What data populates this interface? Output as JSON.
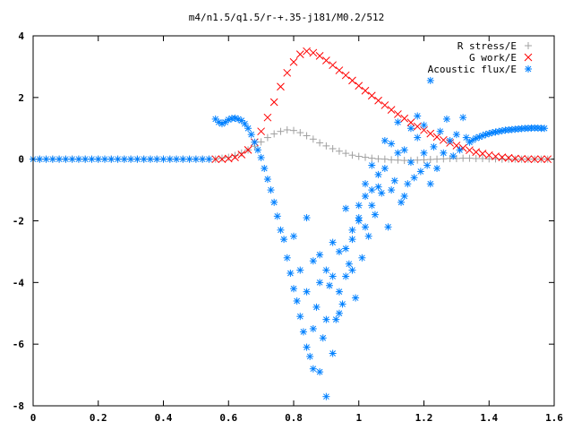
{
  "chart_data": {
    "type": "scatter",
    "title": "m4/n1.5/q1.5/r-+.35-j181/M0.2/512",
    "xlabel": "",
    "ylabel": "",
    "xlim": [
      0,
      1.6
    ],
    "ylim": [
      -8,
      4
    ],
    "x_ticks": [
      "0",
      "0.2",
      "0.4",
      "0.6",
      "0.8",
      "1",
      "1.2",
      "1.4",
      "1.6"
    ],
    "y_ticks": [
      "4",
      "2",
      "0",
      "-2",
      "-4",
      "-6",
      "-8"
    ],
    "grid": false,
    "legend_position": "top-right",
    "series": [
      {
        "name": "R stress/E",
        "marker": "+",
        "color": "#a0a0a0",
        "points": [
          [
            0.0,
            0.0
          ],
          [
            0.02,
            0.0
          ],
          [
            0.04,
            0.0
          ],
          [
            0.06,
            0.0
          ],
          [
            0.08,
            0.0
          ],
          [
            0.1,
            0.0
          ],
          [
            0.12,
            0.0
          ],
          [
            0.14,
            0.0
          ],
          [
            0.16,
            0.0
          ],
          [
            0.18,
            0.0
          ],
          [
            0.2,
            0.0
          ],
          [
            0.22,
            0.0
          ],
          [
            0.24,
            0.0
          ],
          [
            0.26,
            0.0
          ],
          [
            0.28,
            0.0
          ],
          [
            0.3,
            0.0
          ],
          [
            0.32,
            0.0
          ],
          [
            0.34,
            0.0
          ],
          [
            0.36,
            0.0
          ],
          [
            0.38,
            0.0
          ],
          [
            0.4,
            0.0
          ],
          [
            0.42,
            0.0
          ],
          [
            0.44,
            0.0
          ],
          [
            0.46,
            0.0
          ],
          [
            0.48,
            0.0
          ],
          [
            0.5,
            0.0
          ],
          [
            0.52,
            0.0
          ],
          [
            0.54,
            0.0
          ],
          [
            0.56,
            0.0
          ],
          [
            0.58,
            0.03
          ],
          [
            0.6,
            0.06
          ],
          [
            0.62,
            0.12
          ],
          [
            0.64,
            0.2
          ],
          [
            0.66,
            0.3
          ],
          [
            0.68,
            0.42
          ],
          [
            0.7,
            0.56
          ],
          [
            0.72,
            0.7
          ],
          [
            0.74,
            0.82
          ],
          [
            0.76,
            0.9
          ],
          [
            0.78,
            0.95
          ],
          [
            0.8,
            0.93
          ],
          [
            0.82,
            0.86
          ],
          [
            0.84,
            0.76
          ],
          [
            0.86,
            0.65
          ],
          [
            0.88,
            0.53
          ],
          [
            0.9,
            0.43
          ],
          [
            0.92,
            0.34
          ],
          [
            0.94,
            0.26
          ],
          [
            0.96,
            0.19
          ],
          [
            0.98,
            0.13
          ],
          [
            1.0,
            0.09
          ],
          [
            1.02,
            0.06
          ],
          [
            1.04,
            0.03
          ],
          [
            1.06,
            0.01
          ],
          [
            1.08,
            0.0
          ],
          [
            1.1,
            -0.02
          ],
          [
            1.12,
            -0.03
          ],
          [
            1.14,
            -0.04
          ],
          [
            1.16,
            -0.04
          ],
          [
            1.18,
            -0.03
          ],
          [
            1.2,
            -0.02
          ],
          [
            1.22,
            -0.01
          ],
          [
            1.24,
            0.0
          ],
          [
            1.26,
            0.01
          ],
          [
            1.28,
            0.02
          ],
          [
            1.3,
            0.02
          ],
          [
            1.32,
            0.03
          ],
          [
            1.34,
            0.03
          ],
          [
            1.36,
            0.02
          ],
          [
            1.38,
            0.02
          ],
          [
            1.4,
            0.01
          ],
          [
            1.42,
            0.01
          ],
          [
            1.44,
            0.0
          ],
          [
            1.46,
            0.0
          ],
          [
            1.48,
            0.0
          ],
          [
            1.5,
            0.0
          ],
          [
            1.52,
            0.0
          ],
          [
            1.54,
            0.0
          ],
          [
            1.56,
            0.0
          ],
          [
            1.58,
            0.0
          ]
        ]
      },
      {
        "name": "G work/E",
        "marker": "x",
        "color": "#ff0000",
        "points": [
          [
            0.56,
            0.0
          ],
          [
            0.58,
            0.0
          ],
          [
            0.6,
            0.02
          ],
          [
            0.62,
            0.06
          ],
          [
            0.64,
            0.15
          ],
          [
            0.66,
            0.3
          ],
          [
            0.68,
            0.55
          ],
          [
            0.7,
            0.9
          ],
          [
            0.72,
            1.35
          ],
          [
            0.74,
            1.85
          ],
          [
            0.76,
            2.35
          ],
          [
            0.78,
            2.8
          ],
          [
            0.8,
            3.15
          ],
          [
            0.82,
            3.4
          ],
          [
            0.84,
            3.5
          ],
          [
            0.86,
            3.45
          ],
          [
            0.88,
            3.35
          ],
          [
            0.9,
            3.2
          ],
          [
            0.92,
            3.05
          ],
          [
            0.94,
            2.88
          ],
          [
            0.96,
            2.72
          ],
          [
            0.98,
            2.55
          ],
          [
            1.0,
            2.38
          ],
          [
            1.02,
            2.22
          ],
          [
            1.04,
            2.06
          ],
          [
            1.06,
            1.9
          ],
          [
            1.08,
            1.75
          ],
          [
            1.1,
            1.6
          ],
          [
            1.12,
            1.46
          ],
          [
            1.14,
            1.32
          ],
          [
            1.16,
            1.19
          ],
          [
            1.18,
            1.06
          ],
          [
            1.2,
            0.94
          ],
          [
            1.22,
            0.83
          ],
          [
            1.24,
            0.72
          ],
          [
            1.26,
            0.62
          ],
          [
            1.28,
            0.53
          ],
          [
            1.3,
            0.44
          ],
          [
            1.32,
            0.36
          ],
          [
            1.34,
            0.29
          ],
          [
            1.36,
            0.23
          ],
          [
            1.38,
            0.18
          ],
          [
            1.4,
            0.13
          ],
          [
            1.42,
            0.09
          ],
          [
            1.44,
            0.06
          ],
          [
            1.46,
            0.04
          ],
          [
            1.48,
            0.02
          ],
          [
            1.5,
            0.01
          ],
          [
            1.52,
            0.0
          ],
          [
            1.54,
            0.0
          ],
          [
            1.56,
            0.0
          ],
          [
            1.58,
            0.0
          ]
        ]
      },
      {
        "name": "Acoustic flux/E",
        "marker": "*",
        "color": "#0080ff",
        "points": [
          [
            0.0,
            0.0
          ],
          [
            0.02,
            0.0
          ],
          [
            0.04,
            0.0
          ],
          [
            0.06,
            0.0
          ],
          [
            0.08,
            0.0
          ],
          [
            0.1,
            0.0
          ],
          [
            0.12,
            0.0
          ],
          [
            0.14,
            0.0
          ],
          [
            0.16,
            0.0
          ],
          [
            0.18,
            0.0
          ],
          [
            0.2,
            0.0
          ],
          [
            0.22,
            0.0
          ],
          [
            0.24,
            0.0
          ],
          [
            0.26,
            0.0
          ],
          [
            0.28,
            0.0
          ],
          [
            0.3,
            0.0
          ],
          [
            0.32,
            0.0
          ],
          [
            0.34,
            0.0
          ],
          [
            0.36,
            0.0
          ],
          [
            0.38,
            0.0
          ],
          [
            0.4,
            0.0
          ],
          [
            0.42,
            0.0
          ],
          [
            0.44,
            0.0
          ],
          [
            0.46,
            0.0
          ],
          [
            0.48,
            0.0
          ],
          [
            0.5,
            0.0
          ],
          [
            0.52,
            0.0
          ],
          [
            0.54,
            0.0
          ],
          [
            0.56,
            1.3
          ],
          [
            0.57,
            1.2
          ],
          [
            0.58,
            1.15
          ],
          [
            0.59,
            1.2
          ],
          [
            0.6,
            1.28
          ],
          [
            0.61,
            1.32
          ],
          [
            0.62,
            1.33
          ],
          [
            0.63,
            1.3
          ],
          [
            0.64,
            1.25
          ],
          [
            0.65,
            1.15
          ],
          [
            0.66,
            1.0
          ],
          [
            0.67,
            0.8
          ],
          [
            0.68,
            0.55
          ],
          [
            0.69,
            0.3
          ],
          [
            0.7,
            0.05
          ],
          [
            0.71,
            -0.3
          ],
          [
            0.72,
            -0.65
          ],
          [
            0.73,
            -1.0
          ],
          [
            0.74,
            -1.4
          ],
          [
            0.75,
            -1.85
          ],
          [
            0.76,
            -2.3
          ],
          [
            0.77,
            -2.6
          ],
          [
            0.78,
            -3.2
          ],
          [
            0.79,
            -3.7
          ],
          [
            0.8,
            -4.2
          ],
          [
            0.81,
            -4.6
          ],
          [
            0.82,
            -5.1
          ],
          [
            0.83,
            -5.6
          ],
          [
            0.84,
            -6.1
          ],
          [
            0.85,
            -6.4
          ],
          [
            0.86,
            -6.8
          ],
          [
            0.88,
            -6.9
          ],
          [
            0.9,
            -7.7
          ],
          [
            0.92,
            -6.3
          ],
          [
            0.94,
            -5.0
          ],
          [
            0.96,
            -3.8
          ],
          [
            0.98,
            -2.6
          ],
          [
            1.0,
            -1.5
          ],
          [
            1.02,
            -0.8
          ],
          [
            1.04,
            -0.2
          ],
          [
            0.8,
            -2.5
          ],
          [
            0.82,
            -3.6
          ],
          [
            0.84,
            -4.3
          ],
          [
            0.86,
            -3.3
          ],
          [
            0.87,
            -4.8
          ],
          [
            0.88,
            -3.1
          ],
          [
            0.89,
            -5.8
          ],
          [
            0.9,
            -3.6
          ],
          [
            0.91,
            -4.1
          ],
          [
            0.92,
            -2.7
          ],
          [
            0.93,
            -5.2
          ],
          [
            0.94,
            -3.0
          ],
          [
            0.95,
            -4.7
          ],
          [
            0.96,
            -1.6
          ],
          [
            0.97,
            -3.4
          ],
          [
            0.98,
            -2.3
          ],
          [
            0.99,
            -4.5
          ],
          [
            1.0,
            -2.0
          ],
          [
            1.01,
            -3.2
          ],
          [
            1.02,
            -1.2
          ],
          [
            1.03,
            -2.5
          ],
          [
            1.04,
            -1.0
          ],
          [
            1.05,
            -1.8
          ],
          [
            1.06,
            -0.5
          ],
          [
            1.07,
            -1.1
          ],
          [
            1.08,
            -0.3
          ],
          [
            1.09,
            -2.2
          ],
          [
            1.1,
            0.5
          ],
          [
            1.11,
            -0.7
          ],
          [
            1.12,
            1.2
          ],
          [
            1.13,
            -1.4
          ],
          [
            1.14,
            0.3
          ],
          [
            1.15,
            -0.8
          ],
          [
            1.16,
            1.0
          ],
          [
            1.17,
            -0.6
          ],
          [
            1.18,
            0.7
          ],
          [
            1.19,
            -0.4
          ],
          [
            1.2,
            1.1
          ],
          [
            1.21,
            -0.2
          ],
          [
            1.22,
            2.55
          ],
          [
            1.23,
            0.4
          ],
          [
            1.24,
            -0.3
          ],
          [
            1.25,
            0.9
          ],
          [
            1.26,
            0.2
          ],
          [
            1.27,
            1.3
          ],
          [
            1.28,
            0.6
          ],
          [
            1.29,
            0.1
          ],
          [
            1.3,
            0.8
          ],
          [
            1.31,
            0.3
          ],
          [
            1.32,
            1.35
          ],
          [
            0.84,
            -1.9
          ],
          [
            0.86,
            -5.5
          ],
          [
            0.88,
            -4.0
          ],
          [
            0.9,
            -5.2
          ],
          [
            0.92,
            -3.8
          ],
          [
            0.94,
            -4.3
          ],
          [
            0.96,
            -2.9
          ],
          [
            0.98,
            -3.6
          ],
          [
            1.0,
            -1.9
          ],
          [
            1.02,
            -2.2
          ],
          [
            1.04,
            -1.5
          ],
          [
            1.06,
            -0.9
          ],
          [
            1.08,
            0.6
          ],
          [
            1.1,
            -1.0
          ],
          [
            1.12,
            0.2
          ],
          [
            1.14,
            -1.2
          ],
          [
            1.16,
            -0.1
          ],
          [
            1.18,
            1.4
          ],
          [
            1.2,
            0.2
          ],
          [
            1.22,
            -0.8
          ],
          [
            1.33,
            0.7
          ],
          [
            1.34,
            0.55
          ],
          [
            1.35,
            0.62
          ],
          [
            1.36,
            0.68
          ],
          [
            1.37,
            0.72
          ],
          [
            1.38,
            0.76
          ],
          [
            1.39,
            0.8
          ],
          [
            1.4,
            0.83
          ],
          [
            1.41,
            0.86
          ],
          [
            1.42,
            0.88
          ],
          [
            1.43,
            0.9
          ],
          [
            1.44,
            0.92
          ],
          [
            1.45,
            0.94
          ],
          [
            1.46,
            0.95
          ],
          [
            1.47,
            0.96
          ],
          [
            1.48,
            0.97
          ],
          [
            1.49,
            0.98
          ],
          [
            1.5,
            0.99
          ],
          [
            1.51,
            1.0
          ],
          [
            1.52,
            1.0
          ],
          [
            1.53,
            1.01
          ],
          [
            1.54,
            1.01
          ],
          [
            1.55,
            1.01
          ],
          [
            1.56,
            1.0
          ],
          [
            1.57,
            1.0
          ]
        ]
      }
    ]
  }
}
